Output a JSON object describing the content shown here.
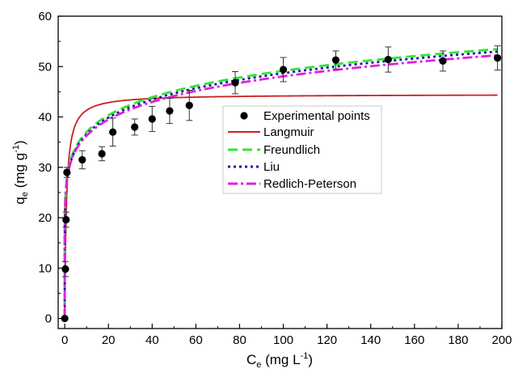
{
  "chart_data": {
    "type": "scatter",
    "xlabel": "C",
    "xlabel_sub": "e",
    "xlabel_unit_pre": " (mg L",
    "xlabel_unit_sup": "-1",
    "xlabel_unit_post": ")",
    "ylabel": "q",
    "ylabel_sub": "e",
    "ylabel_unit_pre": " (mg g",
    "ylabel_unit_sup": "-1",
    "ylabel_unit_post": ")",
    "xlim": [
      -3,
      200
    ],
    "ylim": [
      -2,
      60
    ],
    "xticks": [
      0,
      20,
      40,
      60,
      80,
      100,
      120,
      140,
      160,
      180,
      200
    ],
    "yticks": [
      0,
      10,
      20,
      30,
      40,
      50,
      60
    ],
    "grid": false,
    "legend_position": "center-right",
    "series": [
      {
        "name": "Experimental points",
        "kind": "points",
        "color": "#000000",
        "x": [
          0,
          0.3,
          0.6,
          1.0,
          8,
          17,
          22,
          32,
          40,
          48,
          57,
          78,
          100,
          124,
          148,
          173,
          198
        ],
        "y": [
          0,
          9.8,
          19.6,
          29,
          31.5,
          32.7,
          37,
          38,
          39.6,
          41.2,
          42.3,
          46.8,
          49.4,
          51.3,
          51.4,
          51.1,
          51.7
        ],
        "yerr": [
          0,
          1.5,
          1.5,
          1.0,
          1.8,
          1.4,
          2.8,
          1.6,
          2.5,
          2.5,
          3.0,
          2.2,
          2.4,
          1.8,
          2.5,
          2.0,
          2.4
        ]
      },
      {
        "name": "Langmuir",
        "kind": "line",
        "color": "#cc1f1f",
        "dash": "",
        "model": "langmuir",
        "params": {
          "qm": 44.5,
          "K": 1.3
        }
      },
      {
        "name": "Freundlich",
        "kind": "line",
        "color": "#33e633",
        "dash": "12,6",
        "model": "freundlich",
        "params": {
          "K": 27.9,
          "n": 0.123
        }
      },
      {
        "name": "Liu",
        "kind": "line",
        "color": "#1a1aa8",
        "dash": "3,4",
        "model": "freundlich",
        "params": {
          "K": 27.5,
          "n": 0.124
        }
      },
      {
        "name": "Redlich-Peterson",
        "kind": "line",
        "color": "#e020e0",
        "dash": "12,4,3,4",
        "model": "freundlich",
        "params": {
          "K": 27.4,
          "n": 0.122
        }
      }
    ]
  }
}
